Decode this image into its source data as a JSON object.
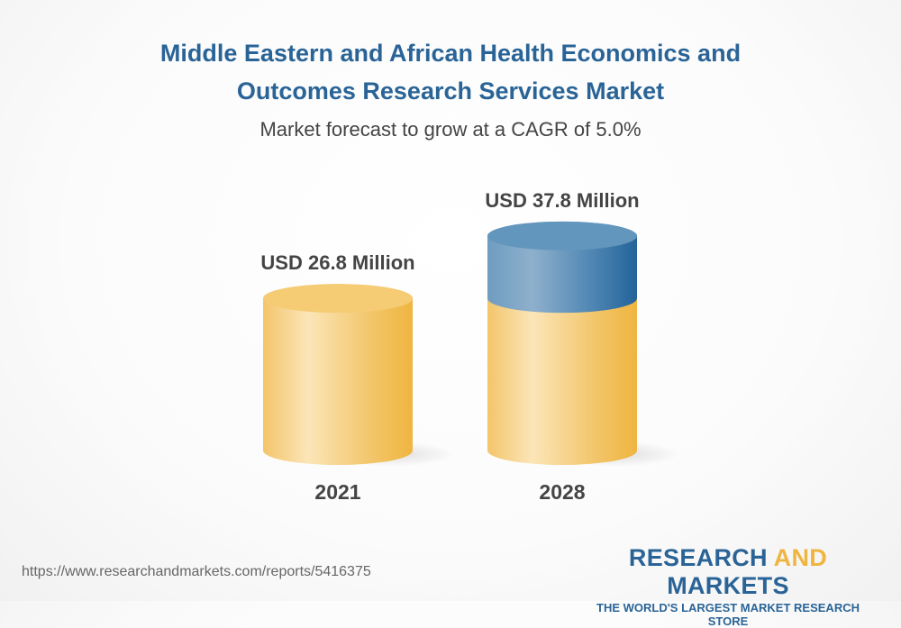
{
  "title_line1": "Middle Eastern and African Health Economics and",
  "title_line2": "Outcomes Research Services Market",
  "subtitle": "Market forecast to grow at a CAGR of 5.0%",
  "url": "https://www.researchandmarkets.com/reports/5416375",
  "logo": {
    "word1": "RESEARCH",
    "word2": "AND",
    "word3": "MARKETS",
    "tagline": "THE WORLD'S LARGEST MARKET RESEARCH STORE"
  },
  "colors": {
    "base": "#f3c05a",
    "growth": "#3f7bab",
    "title": "#2a6497",
    "logo_accent": "#f0b540"
  },
  "chart_data": {
    "type": "bar",
    "style": "3d-cylinder",
    "categories": [
      "2021",
      "2028"
    ],
    "values": [
      26.8,
      37.8
    ],
    "data_labels": [
      "USD 26.8 Million",
      "USD 37.8 Million"
    ],
    "unit": "USD Million",
    "cagr": "5.0%"
  }
}
